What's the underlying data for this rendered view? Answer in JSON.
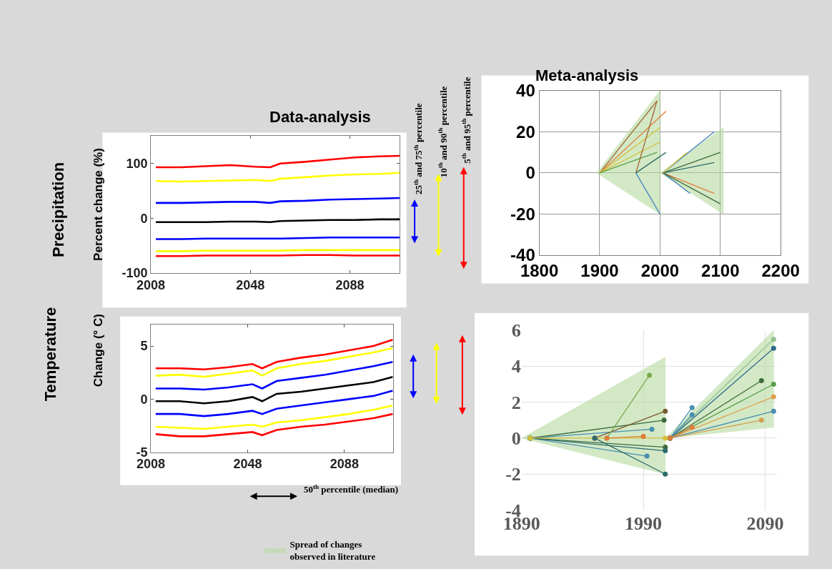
{
  "chart_data": [
    {
      "type": "line",
      "title": "Data-analysis",
      "ylabel": "Percent change (%)",
      "xlim": [
        2008,
        2108
      ],
      "xticks": [
        2008,
        2048,
        2088
      ],
      "ylim": [
        -100,
        150
      ],
      "yticks": [
        -100,
        0,
        100
      ],
      "grid": false,
      "annotations": [
        "Precipitation",
        "25$^{th}$ and 75$^{th}$ percentile",
        "10$^{th}$ and 90$^{th}$ percentile",
        "5$^{th}$ and 95$^{th}$ percentile",
        "50$^{th}$ percentile (median)"
      ],
      "x": [
        2010,
        2020,
        2030,
        2040,
        2050,
        2056,
        2060,
        2070,
        2080,
        2090,
        2100,
        2108
      ],
      "series": [
        {
          "color": "#ff0000",
          "values": [
            93,
            93,
            95,
            97,
            94,
            93,
            100,
            103,
            107,
            111,
            113,
            114
          ]
        },
        {
          "color": "#ffff00",
          "values": [
            68,
            67,
            68,
            69,
            70,
            68,
            72,
            75,
            78,
            80,
            81,
            83
          ]
        },
        {
          "color": "#0000ff",
          "values": [
            28,
            28,
            29,
            30,
            30,
            28,
            31,
            32,
            34,
            35,
            36,
            37
          ]
        },
        {
          "color": "#000000",
          "values": [
            -7,
            -7,
            -7,
            -6,
            -6,
            -7,
            -5,
            -4,
            -3,
            -3,
            -2,
            -2
          ]
        },
        {
          "color": "#0000ff",
          "values": [
            -38,
            -38,
            -37,
            -37,
            -37,
            -37,
            -37,
            -36,
            -35,
            -35,
            -35,
            -35
          ]
        },
        {
          "color": "#ffff00",
          "values": [
            -60,
            -60,
            -59,
            -59,
            -59,
            -59,
            -59,
            -58,
            -58,
            -58,
            -58,
            -58
          ]
        },
        {
          "color": "#ff0000",
          "values": [
            -69,
            -69,
            -68,
            -68,
            -68,
            -68,
            -68,
            -67,
            -67,
            -68,
            -68,
            -68
          ]
        }
      ]
    },
    {
      "type": "line",
      "ylabel": "Change (° C)",
      "xlim": [
        2008,
        2108
      ],
      "xticks": [
        2008,
        2048,
        2088
      ],
      "ylim": [
        -5,
        7
      ],
      "yticks": [
        -5,
        0,
        5
      ],
      "grid": false,
      "annotations": [
        "Temperature"
      ],
      "x": [
        2010,
        2020,
        2030,
        2040,
        2050,
        2054,
        2060,
        2070,
        2080,
        2090,
        2100,
        2108
      ],
      "series": [
        {
          "color": "#ff0000",
          "values": [
            2.9,
            2.9,
            2.8,
            3.0,
            3.3,
            2.9,
            3.5,
            3.9,
            4.2,
            4.6,
            5.0,
            5.6
          ]
        },
        {
          "color": "#ffff00",
          "values": [
            2.2,
            2.3,
            2.1,
            2.4,
            2.7,
            2.2,
            2.9,
            3.3,
            3.6,
            4.0,
            4.4,
            4.8
          ]
        },
        {
          "color": "#0000ff",
          "values": [
            1.0,
            1.0,
            0.9,
            1.1,
            1.4,
            1.0,
            1.7,
            2.0,
            2.3,
            2.7,
            3.1,
            3.5
          ]
        },
        {
          "color": "#000000",
          "values": [
            -0.2,
            -0.2,
            -0.4,
            -0.2,
            0.2,
            -0.2,
            0.5,
            0.7,
            1.0,
            1.3,
            1.6,
            2.1
          ]
        },
        {
          "color": "#0000ff",
          "values": [
            -1.4,
            -1.4,
            -1.6,
            -1.4,
            -1.1,
            -1.4,
            -0.9,
            -0.6,
            -0.3,
            0.0,
            0.3,
            0.8
          ]
        },
        {
          "color": "#ffff00",
          "values": [
            -2.6,
            -2.7,
            -2.8,
            -2.6,
            -2.4,
            -2.6,
            -2.2,
            -2.0,
            -1.7,
            -1.4,
            -1.0,
            -0.6
          ]
        },
        {
          "color": "#ff0000",
          "values": [
            -3.3,
            -3.5,
            -3.5,
            -3.3,
            -3.1,
            -3.4,
            -2.9,
            -2.6,
            -2.4,
            -2.1,
            -1.8,
            -1.4
          ]
        }
      ]
    },
    {
      "type": "line",
      "title": "Meta-analysis",
      "xlim": [
        1800,
        2200
      ],
      "xticks": [
        1800,
        1900,
        2000,
        2100,
        2200
      ],
      "ylim": [
        -40,
        40
      ],
      "yticks": [
        -40,
        -20,
        0,
        20,
        40
      ],
      "grid": true,
      "series": [
        {
          "type": "line",
          "color": "#b5dba0",
          "x": [
            1895,
            2000
          ],
          "values": [
            null,
            null
          ],
          "lower": [
            0,
            -20
          ],
          "upper": [
            0,
            40
          ]
        },
        {
          "type": "line",
          "color": "#b5dba0",
          "x": [
            2000,
            2105
          ],
          "values": [
            null,
            null
          ],
          "lower": [
            0,
            -20
          ],
          "upper": [
            0,
            22
          ]
        },
        {
          "color": "#a0622d",
          "x": [
            1900,
            1995
          ],
          "values": [
            0,
            35
          ]
        },
        {
          "color": "#e07b39",
          "x": [
            1900,
            2010
          ],
          "values": [
            0,
            30
          ]
        },
        {
          "color": "#d4c03a",
          "x": [
            1900,
            2000
          ],
          "values": [
            0,
            22
          ]
        },
        {
          "color": "#d4c03a",
          "x": [
            1900,
            2000
          ],
          "values": [
            0,
            15
          ]
        },
        {
          "color": "#5a9e4b",
          "x": [
            1900,
            1995
          ],
          "values": [
            0,
            10
          ]
        },
        {
          "color": "#a0622d",
          "x": [
            1960,
            1995
          ],
          "values": [
            0,
            35
          ]
        },
        {
          "color": "#3f7fbf",
          "x": [
            1960,
            2000
          ],
          "values": [
            0,
            -20
          ]
        },
        {
          "color": "#2e6b6b",
          "x": [
            1960,
            2010
          ],
          "values": [
            0,
            10
          ]
        },
        {
          "color": "#3f7fbf",
          "x": [
            2005,
            2090
          ],
          "values": [
            0,
            20
          ]
        },
        {
          "color": "#3d6b3d",
          "x": [
            2005,
            2100
          ],
          "values": [
            0,
            10
          ]
        },
        {
          "color": "#2e6b6b",
          "x": [
            2005,
            2090
          ],
          "values": [
            0,
            5
          ]
        },
        {
          "color": "#d4c03a",
          "x": [
            2005,
            2045
          ],
          "values": [
            0,
            10
          ]
        },
        {
          "color": "#3f7fbf",
          "x": [
            2005,
            2050
          ],
          "values": [
            0,
            -10
          ]
        },
        {
          "color": "#e07b39",
          "x": [
            2005,
            2090
          ],
          "values": [
            0,
            -10
          ]
        },
        {
          "color": "#3d6b3d",
          "x": [
            2005,
            2100
          ],
          "values": [
            0,
            -15
          ]
        }
      ]
    },
    {
      "type": "line",
      "xlim": [
        1890,
        2100
      ],
      "xticks": [
        1890,
        1990,
        2090
      ],
      "ylim": [
        -4,
        6
      ],
      "yticks": [
        -4,
        -2,
        0,
        2,
        4,
        6
      ],
      "grid": true,
      "marker": "circle",
      "legend": "bottom left",
      "series": [
        {
          "type": "line",
          "color": "#b5dba0",
          "name": "Spread of changes observed in literature",
          "x": [
            1890,
            2008
          ],
          "values": [
            null,
            null
          ],
          "lower": [
            0,
            -2
          ],
          "upper": [
            0,
            4.5
          ]
        },
        {
          "type": "line",
          "color": "#b5dba0",
          "x": [
            2008,
            2097
          ],
          "values": [
            null,
            null
          ],
          "lower": [
            0,
            0.6
          ],
          "upper": [
            0,
            6
          ]
        },
        {
          "color": "#4a8fb0",
          "x": [
            1897,
            1997
          ],
          "values": [
            0,
            0.5
          ]
        },
        {
          "color": "#3d6b3d",
          "x": [
            1897,
            2007
          ],
          "values": [
            0,
            1.0
          ]
        },
        {
          "color": "#4a8fb0",
          "x": [
            1897,
            1993
          ],
          "values": [
            0,
            -1.0
          ]
        },
        {
          "color": "#3d6b3d",
          "x": [
            1897,
            2008
          ],
          "values": [
            0,
            -0.5
          ]
        },
        {
          "color": "#2e6b6b",
          "x": [
            1897,
            2008
          ],
          "values": [
            0,
            -0.7
          ]
        },
        {
          "color": "#d4c03a",
          "x": [
            1897,
            2008
          ],
          "values": [
            0,
            0
          ]
        },
        {
          "color": "#7a5a2d",
          "x": [
            1950,
            2008
          ],
          "values": [
            0,
            1.5
          ]
        },
        {
          "color": "#2e6b6b",
          "x": [
            1950,
            2008
          ],
          "values": [
            0,
            -2.0
          ]
        },
        {
          "color": "#7aa84b",
          "x": [
            1960,
            1995
          ],
          "values": [
            0,
            3.5
          ]
        },
        {
          "color": "#e07b39",
          "x": [
            1960,
            1990
          ],
          "values": [
            0,
            0.1
          ]
        },
        {
          "color": "#8fc28f",
          "x": [
            2012,
            2097
          ],
          "values": [
            0,
            5.5
          ]
        },
        {
          "color": "#2e6b8b",
          "x": [
            2012,
            2097
          ],
          "values": [
            0,
            5.0
          ]
        },
        {
          "color": "#3d6b3d",
          "x": [
            2012,
            2087
          ],
          "values": [
            0,
            3.2
          ]
        },
        {
          "color": "#5a9e4b",
          "x": [
            2012,
            2097
          ],
          "values": [
            0,
            3.0
          ]
        },
        {
          "color": "#e0a050",
          "x": [
            2012,
            2097
          ],
          "values": [
            0,
            2.3
          ]
        },
        {
          "color": "#4a8fb0",
          "x": [
            2012,
            2097
          ],
          "values": [
            0,
            1.5
          ]
        },
        {
          "color": "#d4a050",
          "x": [
            2012,
            2087
          ],
          "values": [
            0,
            1.0
          ]
        },
        {
          "color": "#4a8fb0",
          "x": [
            2012,
            2030
          ],
          "values": [
            0,
            1.7
          ]
        },
        {
          "color": "#4a8fb0",
          "x": [
            2012,
            2030
          ],
          "values": [
            0,
            1.3
          ]
        },
        {
          "color": "#e07b39",
          "x": [
            2012,
            2030
          ],
          "values": [
            0,
            0.6
          ]
        }
      ]
    }
  ]
}
